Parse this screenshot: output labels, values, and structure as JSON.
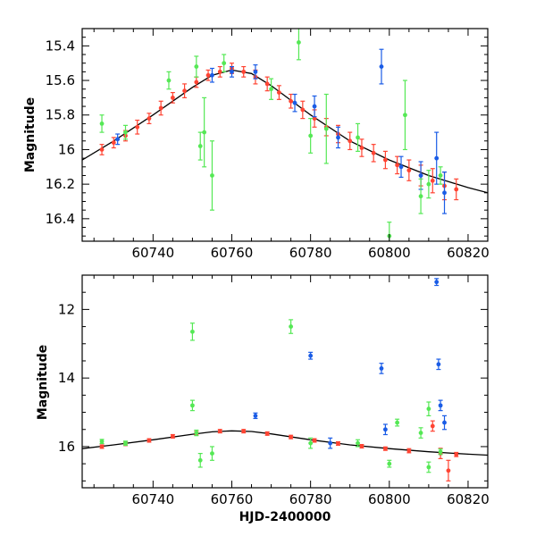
{
  "figure": {
    "xlabel": "HJD-2400000",
    "ylabel_top": "Magnitude",
    "ylabel_bottom": "Magnitude"
  },
  "chart_data": [
    {
      "type": "scatter",
      "panel": "top",
      "xlabel": "",
      "ylabel": "Magnitude",
      "xlim": [
        60722,
        60825
      ],
      "ylim": [
        16.53,
        15.3
      ],
      "y_inverted": true,
      "xticks": [
        60740,
        60760,
        60780,
        60800,
        60820
      ],
      "yticks": [
        15.4,
        15.6,
        15.8,
        16.0,
        16.2,
        16.4
      ],
      "ytick_labels": [
        "15.4",
        "15.6",
        "15.8",
        "16",
        "16.2",
        "16.4"
      ],
      "model_curve": {
        "x": [
          60722,
          60730,
          60740,
          60750,
          60755,
          60760,
          60765,
          60770,
          60780,
          60790,
          60800,
          60810,
          60820,
          60825
        ],
        "y": [
          16.06,
          15.95,
          15.8,
          15.64,
          15.57,
          15.54,
          15.56,
          15.63,
          15.8,
          15.95,
          16.06,
          16.15,
          16.22,
          16.25
        ]
      },
      "series": [
        {
          "color": "#ff4433",
          "points": [
            {
              "x": 60727,
              "y": 16.0,
              "err": 0.03
            },
            {
              "x": 60730,
              "y": 15.96,
              "err": 0.03
            },
            {
              "x": 60733,
              "y": 15.92,
              "err": 0.03
            },
            {
              "x": 60736,
              "y": 15.87,
              "err": 0.04
            },
            {
              "x": 60739,
              "y": 15.82,
              "err": 0.03
            },
            {
              "x": 60742,
              "y": 15.76,
              "err": 0.04
            },
            {
              "x": 60745,
              "y": 15.7,
              "err": 0.03
            },
            {
              "x": 60748,
              "y": 15.66,
              "err": 0.04
            },
            {
              "x": 60751,
              "y": 15.61,
              "err": 0.03
            },
            {
              "x": 60754,
              "y": 15.57,
              "err": 0.03
            },
            {
              "x": 60757,
              "y": 15.55,
              "err": 0.03
            },
            {
              "x": 60760,
              "y": 15.53,
              "err": 0.03
            },
            {
              "x": 60763,
              "y": 15.55,
              "err": 0.03
            },
            {
              "x": 60766,
              "y": 15.58,
              "err": 0.04
            },
            {
              "x": 60769,
              "y": 15.62,
              "err": 0.04
            },
            {
              "x": 60772,
              "y": 15.67,
              "err": 0.04
            },
            {
              "x": 60775,
              "y": 15.72,
              "err": 0.04
            },
            {
              "x": 60778,
              "y": 15.77,
              "err": 0.05
            },
            {
              "x": 60781,
              "y": 15.82,
              "err": 0.05
            },
            {
              "x": 60784,
              "y": 15.87,
              "err": 0.05
            },
            {
              "x": 60787,
              "y": 15.91,
              "err": 0.05
            },
            {
              "x": 60790,
              "y": 15.95,
              "err": 0.05
            },
            {
              "x": 60793,
              "y": 15.99,
              "err": 0.05
            },
            {
              "x": 60796,
              "y": 16.02,
              "err": 0.05
            },
            {
              "x": 60799,
              "y": 16.06,
              "err": 0.05
            },
            {
              "x": 60802,
              "y": 16.09,
              "err": 0.05
            },
            {
              "x": 60805,
              "y": 16.12,
              "err": 0.06
            },
            {
              "x": 60808,
              "y": 16.15,
              "err": 0.06
            },
            {
              "x": 60811,
              "y": 16.18,
              "err": 0.07
            },
            {
              "x": 60814,
              "y": 16.21,
              "err": 0.08
            },
            {
              "x": 60817,
              "y": 16.23,
              "err": 0.06
            }
          ]
        },
        {
          "color": "#1a5ce6",
          "points": [
            {
              "x": 60731,
              "y": 15.94,
              "err": 0.03
            },
            {
              "x": 60755,
              "y": 15.57,
              "err": 0.04
            },
            {
              "x": 60760,
              "y": 15.55,
              "err": 0.03
            },
            {
              "x": 60766,
              "y": 15.55,
              "err": 0.04
            },
            {
              "x": 60776,
              "y": 15.73,
              "err": 0.05
            },
            {
              "x": 60781,
              "y": 15.75,
              "err": 0.06
            },
            {
              "x": 60787,
              "y": 15.93,
              "err": 0.06
            },
            {
              "x": 60798,
              "y": 15.52,
              "err": 0.1
            },
            {
              "x": 60803,
              "y": 16.1,
              "err": 0.06
            },
            {
              "x": 60808,
              "y": 16.15,
              "err": 0.08
            },
            {
              "x": 60812,
              "y": 16.05,
              "err": 0.15
            },
            {
              "x": 60814,
              "y": 16.25,
              "err": 0.12
            }
          ]
        },
        {
          "color": "#55e855",
          "points": [
            {
              "x": 60727,
              "y": 15.85,
              "err": 0.05
            },
            {
              "x": 60733,
              "y": 15.9,
              "err": 0.04
            },
            {
              "x": 60744,
              "y": 15.6,
              "err": 0.05
            },
            {
              "x": 60751,
              "y": 15.52,
              "err": 0.06
            },
            {
              "x": 60752,
              "y": 15.98,
              "err": 0.08
            },
            {
              "x": 60753,
              "y": 15.9,
              "err": 0.2
            },
            {
              "x": 60755,
              "y": 16.15,
              "err": 0.2
            },
            {
              "x": 60758,
              "y": 15.5,
              "err": 0.05
            },
            {
              "x": 60770,
              "y": 15.65,
              "err": 0.06
            },
            {
              "x": 60777,
              "y": 15.38,
              "err": 0.1
            },
            {
              "x": 60780,
              "y": 15.92,
              "err": 0.1
            },
            {
              "x": 60784,
              "y": 15.88,
              "err": 0.2
            },
            {
              "x": 60792,
              "y": 15.93,
              "err": 0.08
            },
            {
              "x": 60800,
              "y": 16.5,
              "err": 0.08
            },
            {
              "x": 60804,
              "y": 15.8,
              "err": 0.2
            },
            {
              "x": 60808,
              "y": 16.27,
              "err": 0.1
            },
            {
              "x": 60810,
              "y": 16.2,
              "err": 0.08
            },
            {
              "x": 60813,
              "y": 16.15,
              "err": 0.05
            }
          ]
        }
      ]
    },
    {
      "type": "scatter",
      "panel": "bottom",
      "xlabel": "HJD-2400000",
      "ylabel": "Magnitude",
      "xlim": [
        60722,
        60825
      ],
      "ylim": [
        17.2,
        11.0
      ],
      "y_inverted": true,
      "xticks": [
        60740,
        60760,
        60780,
        60800,
        60820
      ],
      "yticks": [
        12,
        14,
        16
      ],
      "ytick_labels": [
        "12",
        "14",
        "16"
      ],
      "model_curve": {
        "x": [
          60722,
          60730,
          60740,
          60750,
          60755,
          60760,
          60765,
          60770,
          60780,
          60790,
          60800,
          60810,
          60820,
          60825
        ],
        "y": [
          16.06,
          15.95,
          15.8,
          15.64,
          15.57,
          15.54,
          15.56,
          15.63,
          15.8,
          15.95,
          16.06,
          16.15,
          16.22,
          16.25
        ]
      },
      "series": [
        {
          "color": "#ff4433",
          "points": [
            {
              "x": 60727,
              "y": 16.0,
              "err": 0.05
            },
            {
              "x": 60733,
              "y": 15.92,
              "err": 0.05
            },
            {
              "x": 60739,
              "y": 15.82,
              "err": 0.05
            },
            {
              "x": 60745,
              "y": 15.7,
              "err": 0.05
            },
            {
              "x": 60751,
              "y": 15.61,
              "err": 0.05
            },
            {
              "x": 60757,
              "y": 15.55,
              "err": 0.05
            },
            {
              "x": 60763,
              "y": 15.55,
              "err": 0.05
            },
            {
              "x": 60769,
              "y": 15.62,
              "err": 0.05
            },
            {
              "x": 60775,
              "y": 15.72,
              "err": 0.05
            },
            {
              "x": 60781,
              "y": 15.82,
              "err": 0.05
            },
            {
              "x": 60787,
              "y": 15.91,
              "err": 0.05
            },
            {
              "x": 60793,
              "y": 15.99,
              "err": 0.05
            },
            {
              "x": 60799,
              "y": 16.06,
              "err": 0.05
            },
            {
              "x": 60805,
              "y": 16.12,
              "err": 0.06
            },
            {
              "x": 60811,
              "y": 15.4,
              "err": 0.15
            },
            {
              "x": 60813,
              "y": 16.2,
              "err": 0.15
            },
            {
              "x": 60815,
              "y": 16.7,
              "err": 0.3
            },
            {
              "x": 60817,
              "y": 16.23,
              "err": 0.06
            }
          ]
        },
        {
          "color": "#1a5ce6",
          "points": [
            {
              "x": 60766,
              "y": 15.1,
              "err": 0.08
            },
            {
              "x": 60780,
              "y": 13.35,
              "err": 0.1
            },
            {
              "x": 60785,
              "y": 15.9,
              "err": 0.15
            },
            {
              "x": 60798,
              "y": 13.72,
              "err": 0.15
            },
            {
              "x": 60799,
              "y": 15.5,
              "err": 0.15
            },
            {
              "x": 60812,
              "y": 11.2,
              "err": 0.1
            },
            {
              "x": 60812.5,
              "y": 13.6,
              "err": 0.15
            },
            {
              "x": 60813,
              "y": 14.8,
              "err": 0.15
            },
            {
              "x": 60814,
              "y": 15.3,
              "err": 0.2
            }
          ]
        },
        {
          "color": "#55e855",
          "points": [
            {
              "x": 60727,
              "y": 15.85,
              "err": 0.06
            },
            {
              "x": 60733,
              "y": 15.9,
              "err": 0.06
            },
            {
              "x": 60750,
              "y": 12.65,
              "err": 0.25
            },
            {
              "x": 60750,
              "y": 14.8,
              "err": 0.15
            },
            {
              "x": 60751,
              "y": 15.6,
              "err": 0.08
            },
            {
              "x": 60752,
              "y": 16.4,
              "err": 0.2
            },
            {
              "x": 60755,
              "y": 16.2,
              "err": 0.2
            },
            {
              "x": 60775,
              "y": 12.5,
              "err": 0.2
            },
            {
              "x": 60780,
              "y": 15.9,
              "err": 0.15
            },
            {
              "x": 60792,
              "y": 15.9,
              "err": 0.1
            },
            {
              "x": 60800,
              "y": 16.5,
              "err": 0.1
            },
            {
              "x": 60802,
              "y": 15.3,
              "err": 0.1
            },
            {
              "x": 60808,
              "y": 15.6,
              "err": 0.15
            },
            {
              "x": 60810,
              "y": 14.9,
              "err": 0.2
            },
            {
              "x": 60810,
              "y": 16.6,
              "err": 0.15
            },
            {
              "x": 60813,
              "y": 16.15,
              "err": 0.08
            }
          ]
        }
      ]
    }
  ]
}
